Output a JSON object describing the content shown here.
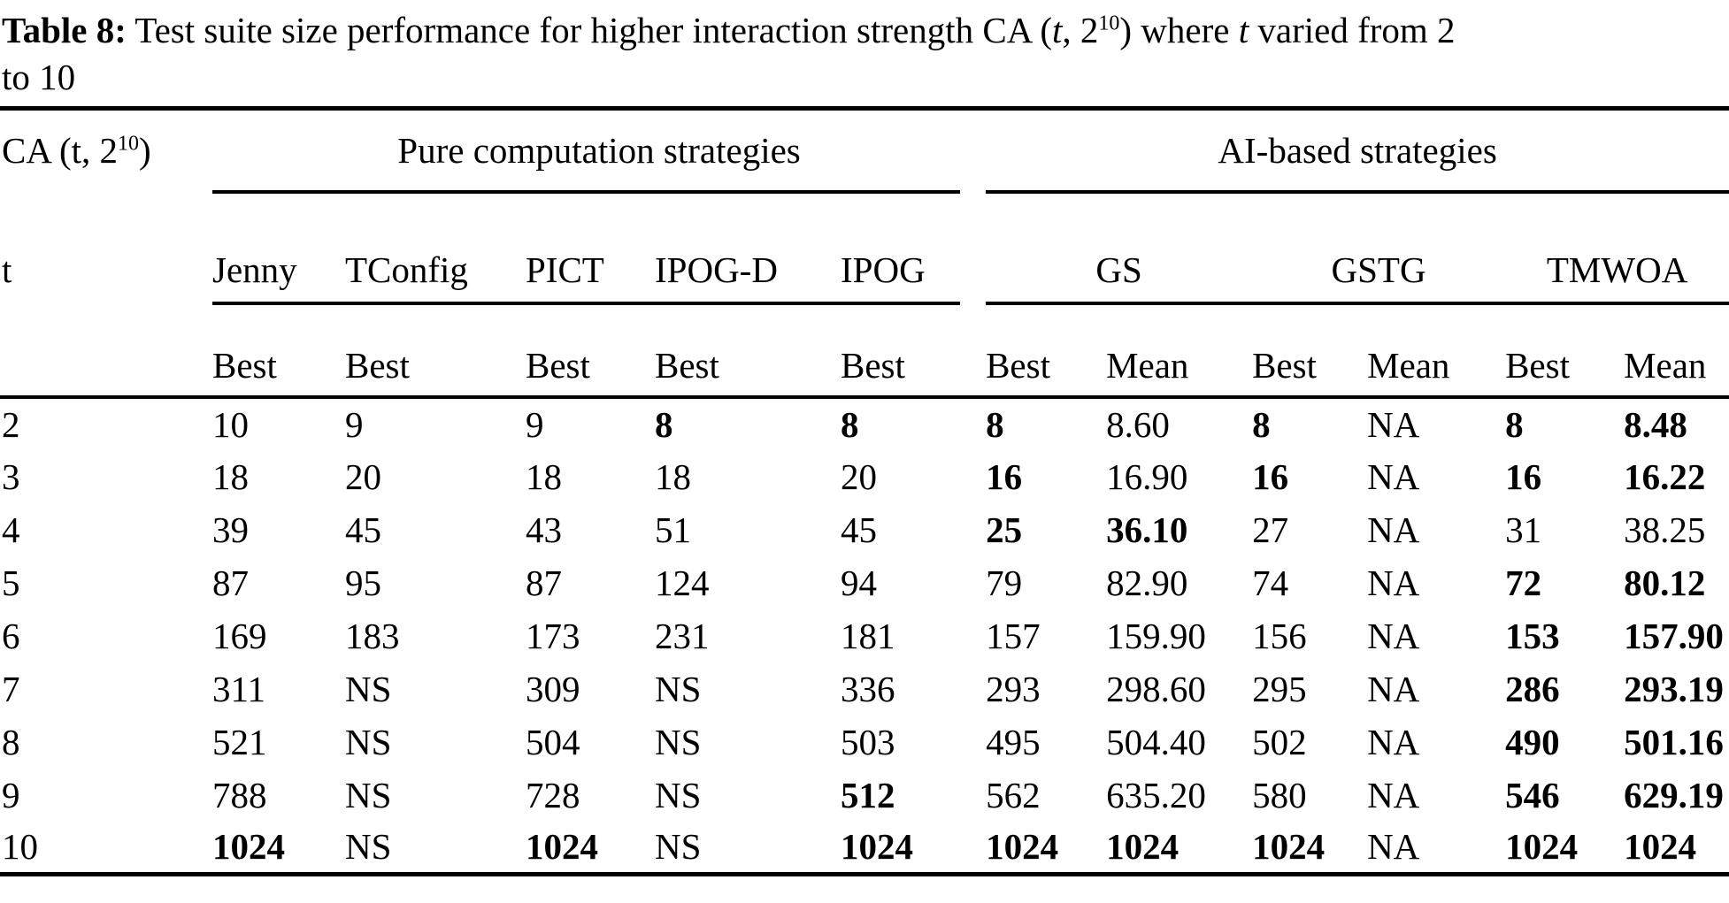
{
  "caption": {
    "label": "Table 8:",
    "part1": " Test suite size performance for higher interaction strength CA (",
    "t_var1": "t",
    "part2": ", 2",
    "exponent": "10",
    "part3": ") where ",
    "t_var2": "t",
    "part4": " varied from 2",
    "part5": "to 10"
  },
  "header": {
    "ca": {
      "pre": "CA (t, 2",
      "sup": "10",
      "post": ")"
    },
    "groups": [
      {
        "label": "Pure computation strategies"
      },
      {
        "label": "AI-based strategies"
      }
    ],
    "t_label": "t",
    "strategies": [
      "Jenny",
      "TConfig",
      "PICT",
      "IPOG-D",
      "IPOG",
      "GS",
      "GSTG",
      "TMWOA"
    ],
    "subheaders": [
      "Best",
      "Best",
      "Best",
      "Best",
      "Best",
      "Best",
      "Mean",
      "Best",
      "Mean",
      "Best",
      "Mean"
    ]
  },
  "rows": [
    {
      "t": "2",
      "cells": [
        {
          "v": "10"
        },
        {
          "v": "9"
        },
        {
          "v": "9"
        },
        {
          "v": "8",
          "b": true
        },
        {
          "v": "8",
          "b": true
        },
        {
          "v": "8",
          "b": true
        },
        {
          "v": "8.60"
        },
        {
          "v": "8",
          "b": true
        },
        {
          "v": "NA"
        },
        {
          "v": "8",
          "b": true
        },
        {
          "v": "8.48",
          "b": true
        }
      ]
    },
    {
      "t": "3",
      "cells": [
        {
          "v": "18"
        },
        {
          "v": "20"
        },
        {
          "v": "18"
        },
        {
          "v": "18"
        },
        {
          "v": "20"
        },
        {
          "v": "16",
          "b": true
        },
        {
          "v": "16.90"
        },
        {
          "v": "16",
          "b": true
        },
        {
          "v": "NA"
        },
        {
          "v": "16",
          "b": true
        },
        {
          "v": "16.22",
          "b": true
        }
      ]
    },
    {
      "t": "4",
      "cells": [
        {
          "v": "39"
        },
        {
          "v": "45"
        },
        {
          "v": "43"
        },
        {
          "v": "51"
        },
        {
          "v": "45"
        },
        {
          "v": "25",
          "b": true
        },
        {
          "v": "36.10",
          "b": true
        },
        {
          "v": "27"
        },
        {
          "v": "NA"
        },
        {
          "v": "31"
        },
        {
          "v": "38.25"
        }
      ]
    },
    {
      "t": "5",
      "cells": [
        {
          "v": "87"
        },
        {
          "v": "95"
        },
        {
          "v": "87"
        },
        {
          "v": "124"
        },
        {
          "v": "94"
        },
        {
          "v": "79"
        },
        {
          "v": "82.90"
        },
        {
          "v": "74"
        },
        {
          "v": "NA"
        },
        {
          "v": "72",
          "b": true
        },
        {
          "v": "80.12",
          "b": true
        }
      ]
    },
    {
      "t": "6",
      "cells": [
        {
          "v": "169"
        },
        {
          "v": "183"
        },
        {
          "v": "173"
        },
        {
          "v": "231"
        },
        {
          "v": "181"
        },
        {
          "v": "157"
        },
        {
          "v": "159.90"
        },
        {
          "v": "156"
        },
        {
          "v": "NA"
        },
        {
          "v": "153",
          "b": true
        },
        {
          "v": "157.90",
          "b": true
        }
      ]
    },
    {
      "t": "7",
      "cells": [
        {
          "v": "311"
        },
        {
          "v": "NS"
        },
        {
          "v": "309"
        },
        {
          "v": "NS"
        },
        {
          "v": "336"
        },
        {
          "v": "293"
        },
        {
          "v": "298.60"
        },
        {
          "v": "295"
        },
        {
          "v": "NA"
        },
        {
          "v": "286",
          "b": true
        },
        {
          "v": "293.19",
          "b": true
        }
      ]
    },
    {
      "t": "8",
      "cells": [
        {
          "v": "521"
        },
        {
          "v": "NS"
        },
        {
          "v": "504"
        },
        {
          "v": "NS"
        },
        {
          "v": "503"
        },
        {
          "v": "495"
        },
        {
          "v": "504.40"
        },
        {
          "v": "502"
        },
        {
          "v": "NA"
        },
        {
          "v": "490",
          "b": true
        },
        {
          "v": "501.16",
          "b": true
        }
      ]
    },
    {
      "t": "9",
      "cells": [
        {
          "v": "788"
        },
        {
          "v": "NS"
        },
        {
          "v": "728"
        },
        {
          "v": "NS"
        },
        {
          "v": "512",
          "b": true
        },
        {
          "v": "562"
        },
        {
          "v": "635.20"
        },
        {
          "v": "580"
        },
        {
          "v": "NA"
        },
        {
          "v": "546",
          "b": true
        },
        {
          "v": "629.19",
          "b": true
        }
      ]
    },
    {
      "t": "10",
      "cells": [
        {
          "v": "1024",
          "b": true
        },
        {
          "v": "NS"
        },
        {
          "v": "1024",
          "b": true
        },
        {
          "v": "NS"
        },
        {
          "v": "1024",
          "b": true
        },
        {
          "v": "1024",
          "b": true
        },
        {
          "v": "1024",
          "b": true
        },
        {
          "v": "1024",
          "b": true
        },
        {
          "v": "NA"
        },
        {
          "v": "1024",
          "b": true
        },
        {
          "v": "1024",
          "b": true
        }
      ]
    }
  ]
}
